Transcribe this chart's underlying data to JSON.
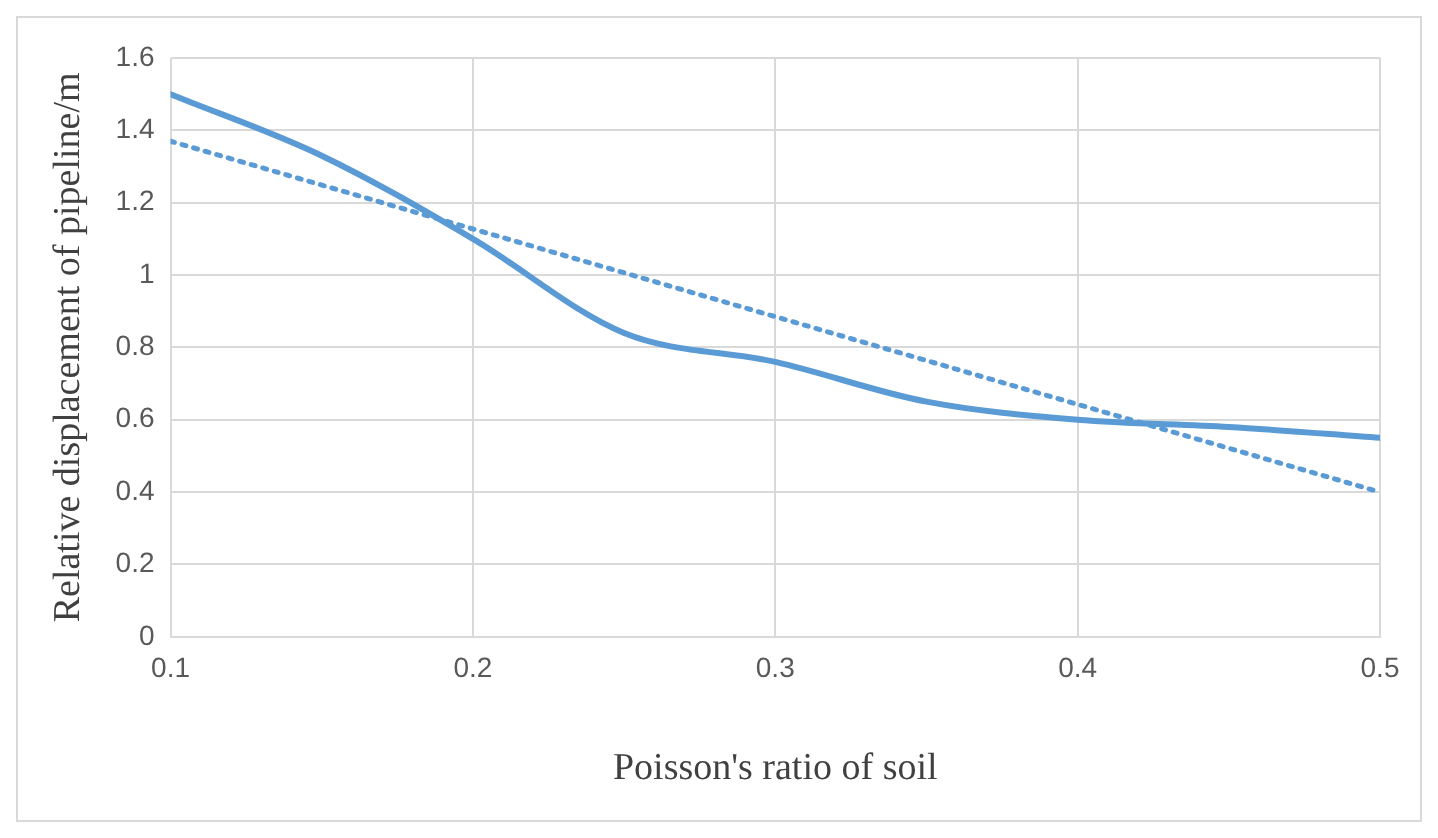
{
  "chart_data": {
    "type": "line",
    "xlabel": "Poisson's ratio of soil",
    "ylabel": "Relative displacement of pipeline/m",
    "x": [
      0.1,
      0.15,
      0.2,
      0.25,
      0.3,
      0.35,
      0.4,
      0.45,
      0.5
    ],
    "series": [
      {
        "color": "#5b9bd5",
        "values": [
          1.5,
          1.33,
          1.1,
          0.84,
          0.76,
          0.65,
          0.6,
          0.58,
          0.55
        ],
        "line_style": "solid"
      },
      {
        "type": "line",
        "color": "#5b9bd5",
        "x": [
          0.1,
          0.5
        ],
        "values": [
          1.37,
          0.4
        ],
        "line_style": "dotted"
      }
    ],
    "xlim": [
      0.1,
      0.5
    ],
    "xticks": [
      0.1,
      0.2,
      0.3,
      0.4,
      0.5
    ],
    "ylim": [
      0,
      1.6
    ],
    "yticks": [
      0,
      0.2,
      0.4,
      0.6,
      0.8,
      1,
      1.2,
      1.4,
      1.6
    ],
    "grid": true,
    "legend": false,
    "marker": "none"
  }
}
